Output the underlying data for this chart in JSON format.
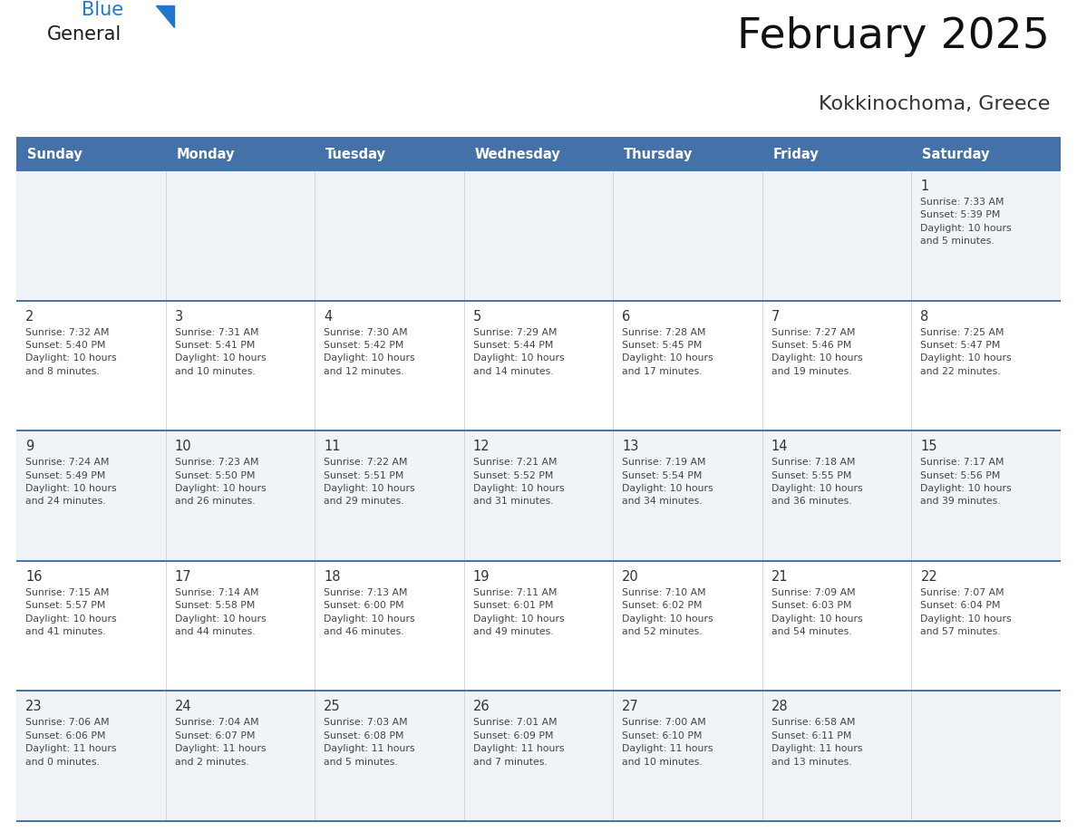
{
  "title": "February 2025",
  "subtitle": "Kokkinochoma, Greece",
  "header_bg": "#4472A8",
  "header_text_color": "#ffffff",
  "day_names": [
    "Sunday",
    "Monday",
    "Tuesday",
    "Wednesday",
    "Thursday",
    "Friday",
    "Saturday"
  ],
  "row_bg_odd": "#f0f4f8",
  "row_bg_even": "#ffffff",
  "border_color": "#4472A8",
  "text_color": "#444444",
  "date_color": "#333333",
  "logo_general_color": "#1a1a1a",
  "logo_blue_color": "#2277cc",
  "logo_triangle_color": "#2277cc",
  "weeks": [
    {
      "days": [
        {
          "date": null,
          "info": null
        },
        {
          "date": null,
          "info": null
        },
        {
          "date": null,
          "info": null
        },
        {
          "date": null,
          "info": null
        },
        {
          "date": null,
          "info": null
        },
        {
          "date": null,
          "info": null
        },
        {
          "date": "1",
          "info": "Sunrise: 7:33 AM\nSunset: 5:39 PM\nDaylight: 10 hours\nand 5 minutes."
        }
      ]
    },
    {
      "days": [
        {
          "date": "2",
          "info": "Sunrise: 7:32 AM\nSunset: 5:40 PM\nDaylight: 10 hours\nand 8 minutes."
        },
        {
          "date": "3",
          "info": "Sunrise: 7:31 AM\nSunset: 5:41 PM\nDaylight: 10 hours\nand 10 minutes."
        },
        {
          "date": "4",
          "info": "Sunrise: 7:30 AM\nSunset: 5:42 PM\nDaylight: 10 hours\nand 12 minutes."
        },
        {
          "date": "5",
          "info": "Sunrise: 7:29 AM\nSunset: 5:44 PM\nDaylight: 10 hours\nand 14 minutes."
        },
        {
          "date": "6",
          "info": "Sunrise: 7:28 AM\nSunset: 5:45 PM\nDaylight: 10 hours\nand 17 minutes."
        },
        {
          "date": "7",
          "info": "Sunrise: 7:27 AM\nSunset: 5:46 PM\nDaylight: 10 hours\nand 19 minutes."
        },
        {
          "date": "8",
          "info": "Sunrise: 7:25 AM\nSunset: 5:47 PM\nDaylight: 10 hours\nand 22 minutes."
        }
      ]
    },
    {
      "days": [
        {
          "date": "9",
          "info": "Sunrise: 7:24 AM\nSunset: 5:49 PM\nDaylight: 10 hours\nand 24 minutes."
        },
        {
          "date": "10",
          "info": "Sunrise: 7:23 AM\nSunset: 5:50 PM\nDaylight: 10 hours\nand 26 minutes."
        },
        {
          "date": "11",
          "info": "Sunrise: 7:22 AM\nSunset: 5:51 PM\nDaylight: 10 hours\nand 29 minutes."
        },
        {
          "date": "12",
          "info": "Sunrise: 7:21 AM\nSunset: 5:52 PM\nDaylight: 10 hours\nand 31 minutes."
        },
        {
          "date": "13",
          "info": "Sunrise: 7:19 AM\nSunset: 5:54 PM\nDaylight: 10 hours\nand 34 minutes."
        },
        {
          "date": "14",
          "info": "Sunrise: 7:18 AM\nSunset: 5:55 PM\nDaylight: 10 hours\nand 36 minutes."
        },
        {
          "date": "15",
          "info": "Sunrise: 7:17 AM\nSunset: 5:56 PM\nDaylight: 10 hours\nand 39 minutes."
        }
      ]
    },
    {
      "days": [
        {
          "date": "16",
          "info": "Sunrise: 7:15 AM\nSunset: 5:57 PM\nDaylight: 10 hours\nand 41 minutes."
        },
        {
          "date": "17",
          "info": "Sunrise: 7:14 AM\nSunset: 5:58 PM\nDaylight: 10 hours\nand 44 minutes."
        },
        {
          "date": "18",
          "info": "Sunrise: 7:13 AM\nSunset: 6:00 PM\nDaylight: 10 hours\nand 46 minutes."
        },
        {
          "date": "19",
          "info": "Sunrise: 7:11 AM\nSunset: 6:01 PM\nDaylight: 10 hours\nand 49 minutes."
        },
        {
          "date": "20",
          "info": "Sunrise: 7:10 AM\nSunset: 6:02 PM\nDaylight: 10 hours\nand 52 minutes."
        },
        {
          "date": "21",
          "info": "Sunrise: 7:09 AM\nSunset: 6:03 PM\nDaylight: 10 hours\nand 54 minutes."
        },
        {
          "date": "22",
          "info": "Sunrise: 7:07 AM\nSunset: 6:04 PM\nDaylight: 10 hours\nand 57 minutes."
        }
      ]
    },
    {
      "days": [
        {
          "date": "23",
          "info": "Sunrise: 7:06 AM\nSunset: 6:06 PM\nDaylight: 11 hours\nand 0 minutes."
        },
        {
          "date": "24",
          "info": "Sunrise: 7:04 AM\nSunset: 6:07 PM\nDaylight: 11 hours\nand 2 minutes."
        },
        {
          "date": "25",
          "info": "Sunrise: 7:03 AM\nSunset: 6:08 PM\nDaylight: 11 hours\nand 5 minutes."
        },
        {
          "date": "26",
          "info": "Sunrise: 7:01 AM\nSunset: 6:09 PM\nDaylight: 11 hours\nand 7 minutes."
        },
        {
          "date": "27",
          "info": "Sunrise: 7:00 AM\nSunset: 6:10 PM\nDaylight: 11 hours\nand 10 minutes."
        },
        {
          "date": "28",
          "info": "Sunrise: 6:58 AM\nSunset: 6:11 PM\nDaylight: 11 hours\nand 13 minutes."
        },
        {
          "date": null,
          "info": null
        }
      ]
    }
  ]
}
